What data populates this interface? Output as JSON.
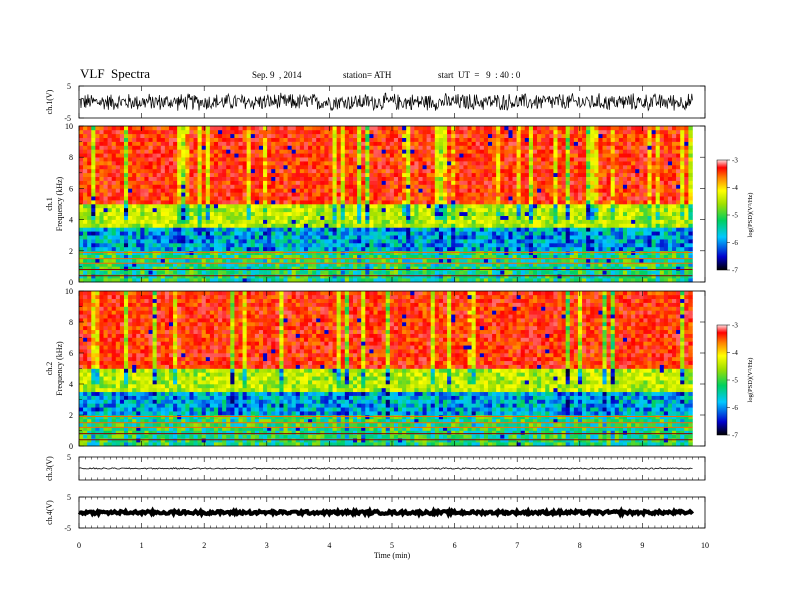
{
  "header": {
    "title": "VLF  Spectra",
    "date": "Sep. 9  , 2014",
    "station": "station= ATH",
    "start": "start  UT  =   9  : 40 : 0"
  },
  "chart_data": [
    {
      "type": "line",
      "ylabel": "ch.1(V)",
      "ylim": [
        -5,
        5
      ],
      "yticks": [
        "5",
        "-5"
      ],
      "series_description_values": {
        "mean": 0,
        "approx_range": [
          -3,
          3
        ]
      }
    },
    {
      "type": "heatmap",
      "ylabel_lines": [
        "ch.1",
        "Frequency  (kHz)"
      ],
      "ylim": [
        0,
        10
      ],
      "yticks": [
        "0",
        "2",
        "4",
        "6",
        "8",
        "10"
      ],
      "colorbar": {
        "ticks": [
          "-3",
          "-4",
          "-5",
          "-6",
          "-7"
        ],
        "label": "log(PSD)(V²/Hz)",
        "range": [
          -7,
          -3
        ]
      },
      "bands": [
        {
          "fmin": 0,
          "fmax": 2,
          "level": -5.6
        },
        {
          "fmin": 2,
          "fmax": 3.5,
          "level": -6.0
        },
        {
          "fmin": 3.5,
          "fmax": 5,
          "level": -5.0
        },
        {
          "fmin": 5,
          "fmax": 10,
          "level": -3.8
        }
      ]
    },
    {
      "type": "heatmap",
      "ylabel_lines": [
        "ch.2",
        "Frequency  (kHz)"
      ],
      "ylim": [
        0,
        10
      ],
      "yticks": [
        "0",
        "2",
        "4",
        "6",
        "8",
        "10"
      ],
      "colorbar": {
        "ticks": [
          "-3",
          "-4",
          "-5",
          "-6",
          "-7"
        ],
        "label": "log(PSD)(V²/Hz)",
        "range": [
          -7,
          -3
        ]
      },
      "bands": [
        {
          "fmin": 0,
          "fmax": 2,
          "level": -5.6
        },
        {
          "fmin": 2,
          "fmax": 3.5,
          "level": -6.0
        },
        {
          "fmin": 3.5,
          "fmax": 5,
          "level": -5.0
        },
        {
          "fmin": 5,
          "fmax": 10,
          "level": -3.8
        }
      ]
    },
    {
      "type": "line",
      "ylabel": "ch.3(V)",
      "ylim": [
        -5,
        5
      ],
      "yticks": [
        "5"
      ],
      "series_description_values": {
        "mean": 0,
        "approx_range": [
          -0.3,
          0.3
        ]
      }
    },
    {
      "type": "line",
      "ylabel": "ch.4(V)",
      "ylim": [
        -5,
        5
      ],
      "yticks": [
        "5",
        "-5"
      ],
      "series_description_values": {
        "mean": 0,
        "approx_range": [
          -0.5,
          0.5
        ]
      }
    }
  ],
  "xaxis": {
    "label": "Time  (min)",
    "xlim": [
      0,
      10
    ],
    "ticks": [
      "0",
      "1",
      "2",
      "3",
      "4",
      "5",
      "6",
      "7",
      "8",
      "9",
      "10"
    ],
    "data_end": 9.8
  }
}
